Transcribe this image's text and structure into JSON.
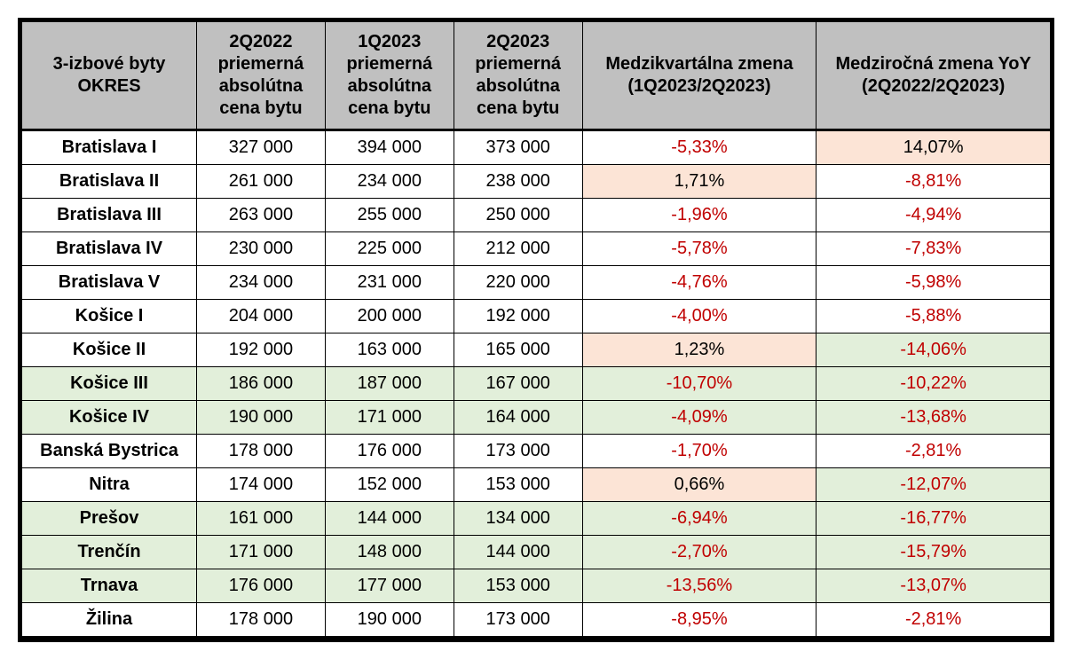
{
  "colors": {
    "header_bg": "#c0c0c0",
    "border": "#000000",
    "highlight_green": "#e2efda",
    "highlight_red": "#fce4d6",
    "pct_text_red": "#c00000",
    "pct_text_black": "#000000"
  },
  "headers": {
    "okres": "3-izbové byty OKRES",
    "q2_2022": "2Q2022 priemerná absolútna cena bytu",
    "q1_2023": "1Q2023 priemerná absolútna cena bytu",
    "q2_2023": "2Q2023 priemerná absolútna cena bytu",
    "qoq": "Medzikvartálna zmena (1Q2023/2Q2023)",
    "yoy": "Medziročná zmena YoY (2Q2022/2Q2023)"
  },
  "rows": [
    {
      "okres": "Bratislava I",
      "q2_2022": "327 000",
      "q1_2023": "394 000",
      "q2_2023": "373 000",
      "qoq": "-5,33%",
      "qoq_hl": "none",
      "qoq_tc": "red",
      "yoy": "14,07%",
      "yoy_hl": "red",
      "yoy_tc": "black",
      "row_hl": "none"
    },
    {
      "okres": "Bratislava II",
      "q2_2022": "261 000",
      "q1_2023": "234 000",
      "q2_2023": "238 000",
      "qoq": "1,71%",
      "qoq_hl": "red",
      "qoq_tc": "black",
      "yoy": "-8,81%",
      "yoy_hl": "none",
      "yoy_tc": "red",
      "row_hl": "none"
    },
    {
      "okres": "Bratislava III",
      "q2_2022": "263 000",
      "q1_2023": "255 000",
      "q2_2023": "250 000",
      "qoq": "-1,96%",
      "qoq_hl": "none",
      "qoq_tc": "red",
      "yoy": "-4,94%",
      "yoy_hl": "none",
      "yoy_tc": "red",
      "row_hl": "none"
    },
    {
      "okres": "Bratislava IV",
      "q2_2022": "230 000",
      "q1_2023": "225 000",
      "q2_2023": "212 000",
      "qoq": "-5,78%",
      "qoq_hl": "none",
      "qoq_tc": "red",
      "yoy": "-7,83%",
      "yoy_hl": "none",
      "yoy_tc": "red",
      "row_hl": "none"
    },
    {
      "okres": "Bratislava V",
      "q2_2022": "234 000",
      "q1_2023": "231 000",
      "q2_2023": "220 000",
      "qoq": "-4,76%",
      "qoq_hl": "none",
      "qoq_tc": "red",
      "yoy": "-5,98%",
      "yoy_hl": "none",
      "yoy_tc": "red",
      "row_hl": "none"
    },
    {
      "okres": "Košice I",
      "q2_2022": "204 000",
      "q1_2023": "200 000",
      "q2_2023": "192 000",
      "qoq": "-4,00%",
      "qoq_hl": "none",
      "qoq_tc": "red",
      "yoy": "-5,88%",
      "yoy_hl": "none",
      "yoy_tc": "red",
      "row_hl": "none"
    },
    {
      "okres": "Košice II",
      "q2_2022": "192 000",
      "q1_2023": "163 000",
      "q2_2023": "165 000",
      "qoq": "1,23%",
      "qoq_hl": "red",
      "qoq_tc": "black",
      "yoy": "-14,06%",
      "yoy_hl": "green",
      "yoy_tc": "red",
      "row_hl": "none"
    },
    {
      "okres": "Košice III",
      "q2_2022": "186 000",
      "q1_2023": "187 000",
      "q2_2023": "167 000",
      "qoq": "-10,70%",
      "qoq_hl": "green",
      "qoq_tc": "red",
      "yoy": "-10,22%",
      "yoy_hl": "green",
      "yoy_tc": "red",
      "row_hl": "green"
    },
    {
      "okres": "Košice IV",
      "q2_2022": "190 000",
      "q1_2023": "171 000",
      "q2_2023": "164 000",
      "qoq": "-4,09%",
      "qoq_hl": "green",
      "qoq_tc": "red",
      "yoy": "-13,68%",
      "yoy_hl": "green",
      "yoy_tc": "red",
      "row_hl": "green"
    },
    {
      "okres": "Banská Bystrica",
      "q2_2022": "178 000",
      "q1_2023": "176 000",
      "q2_2023": "173 000",
      "qoq": "-1,70%",
      "qoq_hl": "none",
      "qoq_tc": "red",
      "yoy": "-2,81%",
      "yoy_hl": "none",
      "yoy_tc": "red",
      "row_hl": "none"
    },
    {
      "okres": "Nitra",
      "q2_2022": "174 000",
      "q1_2023": "152 000",
      "q2_2023": "153 000",
      "qoq": "0,66%",
      "qoq_hl": "red",
      "qoq_tc": "black",
      "yoy": "-12,07%",
      "yoy_hl": "green",
      "yoy_tc": "red",
      "row_hl": "none"
    },
    {
      "okres": "Prešov",
      "q2_2022": "161 000",
      "q1_2023": "144 000",
      "q2_2023": "134 000",
      "qoq": "-6,94%",
      "qoq_hl": "green",
      "qoq_tc": "red",
      "yoy": "-16,77%",
      "yoy_hl": "green",
      "yoy_tc": "red",
      "row_hl": "green"
    },
    {
      "okres": "Trenčín",
      "q2_2022": "171 000",
      "q1_2023": "148 000",
      "q2_2023": "144 000",
      "qoq": "-2,70%",
      "qoq_hl": "green",
      "qoq_tc": "red",
      "yoy": "-15,79%",
      "yoy_hl": "green",
      "yoy_tc": "red",
      "row_hl": "green"
    },
    {
      "okres": "Trnava",
      "q2_2022": "176 000",
      "q1_2023": "177 000",
      "q2_2023": "153 000",
      "qoq": "-13,56%",
      "qoq_hl": "green",
      "qoq_tc": "red",
      "yoy": "-13,07%",
      "yoy_hl": "green",
      "yoy_tc": "red",
      "row_hl": "green"
    },
    {
      "okres": "Žilina",
      "q2_2022": "178 000",
      "q1_2023": "190 000",
      "q2_2023": "173 000",
      "qoq": "-8,95%",
      "qoq_hl": "none",
      "qoq_tc": "red",
      "yoy": "-2,81%",
      "yoy_hl": "none",
      "yoy_tc": "red",
      "row_hl": "none"
    }
  ]
}
